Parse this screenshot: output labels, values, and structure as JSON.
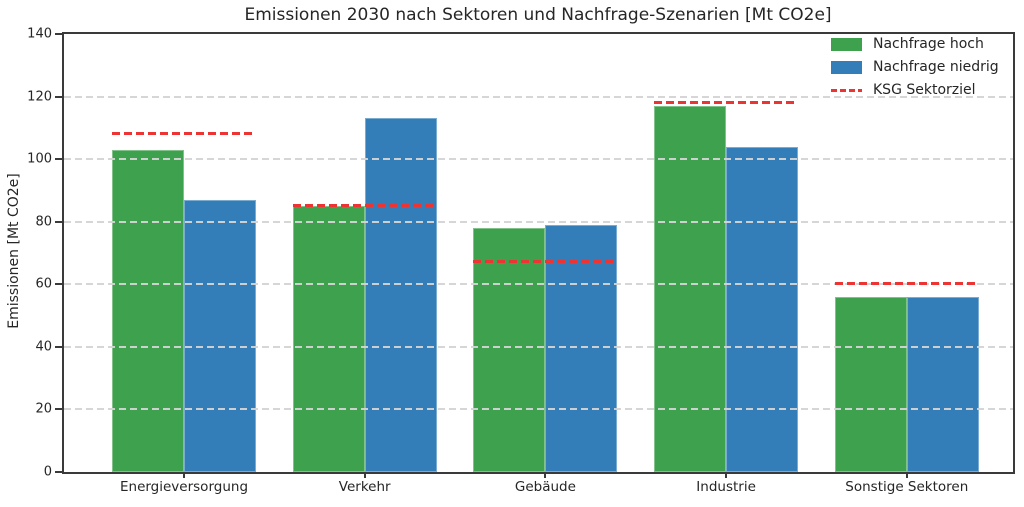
{
  "chart_data": {
    "type": "bar",
    "title": "Emissionen 2030 nach Sektoren und Nachfrage-Szenarien [Mt CO2e]",
    "xlabel": "",
    "ylabel": "Emissionen [Mt CO2e]",
    "ylim": [
      0,
      140
    ],
    "yticks": [
      0,
      20,
      40,
      60,
      80,
      100,
      120,
      140
    ],
    "grid": "horizontal-dashed",
    "legend_position": "upper right",
    "categories": [
      "Energieversorgung",
      "Verkehr",
      "Gebäude",
      "Industrie",
      "Sonstige Sektoren"
    ],
    "series": [
      {
        "name": "Nachfrage hoch",
        "color": "#3EA14E",
        "values": [
          103,
          85,
          78,
          117,
          56
        ]
      },
      {
        "name": "Nachfrage niedrig",
        "color": "#337EB8",
        "values": [
          87,
          113,
          79,
          104,
          56
        ]
      }
    ],
    "target_line": {
      "name": "KSG Sektorziel",
      "color": "#EE3333",
      "style": "dashed",
      "values": [
        108,
        85,
        67,
        118,
        60
      ]
    },
    "colors": {
      "spine": "#3a3a3a",
      "grid": "#d4d4d4",
      "text": "#262626",
      "background": "#ffffff"
    }
  }
}
